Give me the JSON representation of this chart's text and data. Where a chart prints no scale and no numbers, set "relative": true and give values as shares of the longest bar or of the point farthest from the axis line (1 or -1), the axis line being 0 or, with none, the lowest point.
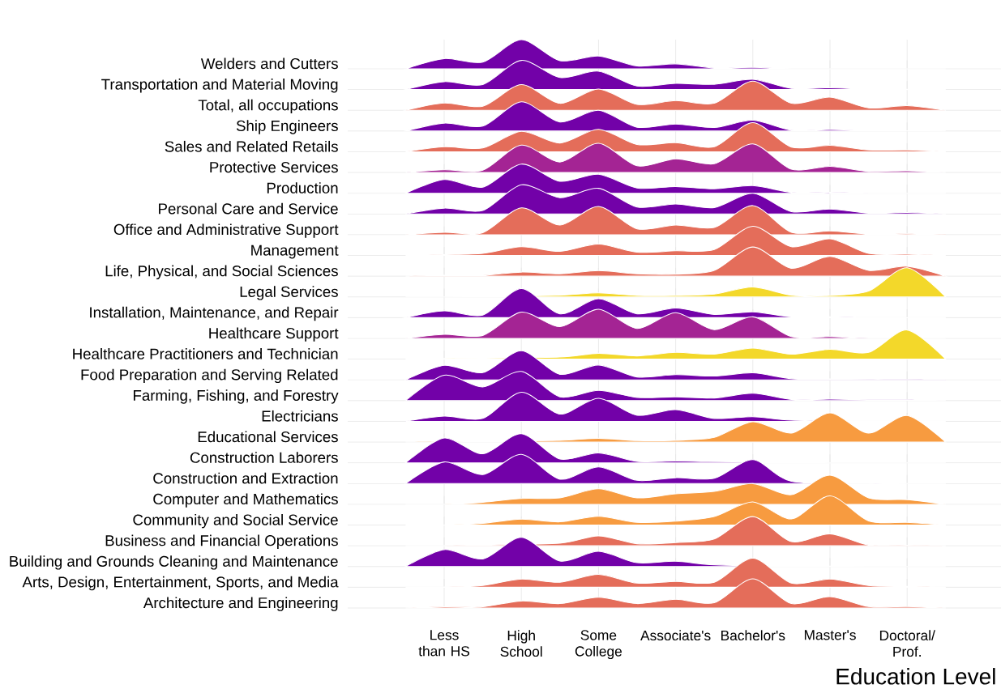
{
  "chart_data": [
    {
      "type": "area",
      "relative": true,
      "grid": true,
      "ylabel": "Welders and Cutters",
      "categories": [
        null,
        null,
        null,
        null,
        null,
        null,
        null,
        null,
        null,
        null,
        null,
        null,
        null,
        null,
        null
      ],
      "color": "#7201a8",
      "values": [
        0,
        0.35,
        0.23,
        1,
        0.28,
        0.44,
        0.1,
        0.17,
        0.03,
        0.05,
        0,
        0,
        0,
        0,
        0
      ]
    },
    {
      "type": "area",
      "relative": true,
      "grid": true,
      "ylabel": "Transportation and Material Moving",
      "categories": [
        null,
        null,
        null,
        null,
        null,
        null,
        null,
        null,
        null,
        null,
        null,
        null,
        null,
        null,
        null
      ],
      "color": "#7201a8",
      "values": [
        0,
        0.27,
        0.17,
        1,
        0.41,
        0.63,
        0.12,
        0.21,
        0.18,
        0.35,
        0.04,
        0.06,
        0.01,
        0.01,
        0
      ]
    },
    {
      "type": "area",
      "relative": true,
      "grid": true,
      "ylabel": "Total, all occupations",
      "categories": [
        null,
        null,
        null,
        null,
        null,
        null,
        null,
        null,
        null,
        null,
        null,
        null,
        null,
        null,
        null
      ],
      "color": "#e46d5a",
      "values": [
        0,
        0.25,
        0.14,
        0.88,
        0.24,
        0.73,
        0.2,
        0.33,
        0.24,
        1,
        0.24,
        0.45,
        0.08,
        0.16,
        0
      ]
    },
    {
      "type": "area",
      "relative": true,
      "grid": true,
      "ylabel": "Ship Engineers",
      "categories": [
        null,
        null,
        null,
        null,
        null,
        null,
        null,
        null,
        null,
        null,
        null,
        null,
        null,
        null,
        null
      ],
      "color": "#7201a8",
      "values": [
        0,
        0.27,
        0.17,
        1,
        0.31,
        0.71,
        0.13,
        0.24,
        0.12,
        0.37,
        0.03,
        0.05,
        0.01,
        0.01,
        0
      ]
    },
    {
      "type": "area",
      "relative": true,
      "grid": true,
      "ylabel": "Sales and Related Retails",
      "categories": [
        null,
        null,
        null,
        null,
        null,
        null,
        null,
        null,
        null,
        null,
        null,
        null,
        null,
        null,
        null
      ],
      "color": "#e46d5a",
      "values": [
        0,
        0.17,
        0.13,
        0.7,
        0.3,
        0.77,
        0.25,
        0.31,
        0.17,
        1,
        0.16,
        0.22,
        0.06,
        0.06,
        0
      ]
    },
    {
      "type": "area",
      "relative": true,
      "grid": true,
      "ylabel": "Protective Services",
      "categories": [
        null,
        null,
        null,
        null,
        null,
        null,
        null,
        null,
        null,
        null,
        null,
        null,
        null,
        null,
        null
      ],
      "color": "#a42494",
      "values": [
        0,
        0.09,
        0.08,
        0.94,
        0.36,
        1,
        0.23,
        0.47,
        0.3,
        0.98,
        0.11,
        0.21,
        0.04,
        0.06,
        0
      ]
    },
    {
      "type": "area",
      "relative": true,
      "grid": true,
      "ylabel": "Production",
      "categories": [
        null,
        null,
        null,
        null,
        null,
        null,
        null,
        null,
        null,
        null,
        null,
        null,
        null,
        null,
        null
      ],
      "color": "#7201a8",
      "values": [
        0,
        0.47,
        0.21,
        1,
        0.41,
        0.65,
        0.18,
        0.23,
        0.15,
        0.26,
        0.03,
        0.03,
        0,
        0,
        0
      ]
    },
    {
      "type": "area",
      "relative": true,
      "grid": true,
      "ylabel": "Personal Care and Service",
      "categories": [
        null,
        null,
        null,
        null,
        null,
        null,
        null,
        null,
        null,
        null,
        null,
        null,
        null,
        null,
        null
      ],
      "color": "#7201a8",
      "values": [
        0,
        0.2,
        0.12,
        1,
        0.56,
        0.88,
        0.24,
        0.34,
        0.22,
        0.71,
        0.08,
        0.17,
        0.03,
        0.05,
        0
      ]
    },
    {
      "type": "area",
      "relative": true,
      "grid": true,
      "ylabel": "Office and Administrative Support",
      "categories": [
        null,
        null,
        null,
        null,
        null,
        null,
        null,
        null,
        null,
        null,
        null,
        null,
        null,
        null,
        null
      ],
      "color": "#e46d5a",
      "values": [
        0,
        0.08,
        0.07,
        0.92,
        0.33,
        0.97,
        0.2,
        0.33,
        0.25,
        1,
        0.08,
        0.13,
        0.02,
        0.03,
        0
      ]
    },
    {
      "type": "area",
      "relative": true,
      "grid": true,
      "ylabel": "Management",
      "categories": [
        null,
        null,
        null,
        null,
        null,
        null,
        null,
        null,
        null,
        null,
        null,
        null,
        null,
        null,
        null
      ],
      "color": "#e46d5a",
      "values": [
        0,
        0.03,
        0.07,
        0.3,
        0.14,
        0.39,
        0.11,
        0.16,
        0.2,
        1,
        0.3,
        0.57,
        0.07,
        0.04,
        0
      ]
    },
    {
      "type": "area",
      "relative": true,
      "grid": true,
      "ylabel": "Life, Physical, and Social Sciences",
      "categories": [
        null,
        null,
        null,
        null,
        null,
        null,
        null,
        null,
        null,
        null,
        null,
        null,
        null,
        null,
        null
      ],
      "color": "#e46d5a",
      "values": [
        0,
        0.03,
        0.03,
        0.14,
        0.08,
        0.19,
        0.08,
        0.07,
        0.2,
        1,
        0.27,
        0.68,
        0.2,
        0.34,
        0
      ]
    },
    {
      "type": "area",
      "relative": true,
      "grid": true,
      "ylabel": "Legal Services",
      "categories": [
        null,
        null,
        null,
        null,
        null,
        null,
        null,
        null,
        null,
        null,
        null,
        null,
        null,
        null,
        null
      ],
      "color": "#f3d82a",
      "values": [
        0,
        0,
        0.01,
        null,
        0.06,
        0.14,
        0.05,
        0.05,
        0.1,
        0.34,
        0.06,
        0.05,
        0.2,
        1,
        0
      ]
    },
    {
      "type": "area",
      "relative": true,
      "grid": true,
      "ylabel": "Installation, Maintenance, and Repair",
      "categories": [
        null,
        null,
        null,
        null,
        null,
        null,
        null,
        null,
        null,
        null,
        null,
        null,
        null,
        null,
        null
      ],
      "color": "#7201a8",
      "values": [
        0,
        0.23,
        0.09,
        1,
        0.13,
        0.65,
        0.13,
        0.33,
        0.11,
        0.2,
        0.03,
        0.03,
        0,
        0,
        0
      ]
    },
    {
      "type": "area",
      "relative": true,
      "grid": true,
      "ylabel": "Healthcare Support",
      "categories": [
        null,
        null,
        null,
        null,
        null,
        null,
        null,
        null,
        null,
        null,
        null,
        null,
        null,
        null,
        null
      ],
      "color": "#a42494",
      "values": [
        0,
        0.14,
        0.1,
        0.9,
        0.4,
        1,
        0.34,
        0.88,
        0.3,
        0.74,
        0.06,
        0.06,
        0,
        null,
        0
      ]
    },
    {
      "type": "area",
      "relative": true,
      "grid": true,
      "ylabel": "Healthcare Practitioners and Technician",
      "categories": [
        null,
        null,
        null,
        null,
        null,
        null,
        null,
        null,
        null,
        null,
        null,
        null,
        null,
        null,
        null
      ],
      "color": "#f3d82a",
      "values": [
        0,
        0.02,
        0.03,
        null,
        0.07,
        0.2,
        0.11,
        0.23,
        0.17,
        0.38,
        0.17,
        0.34,
        0.23,
        1,
        0
      ]
    },
    {
      "type": "area",
      "relative": true,
      "grid": true,
      "ylabel": "Food Preparation and Serving Related",
      "categories": [
        null,
        null,
        null,
        null,
        null,
        null,
        null,
        null,
        null,
        null,
        null,
        null,
        null,
        null,
        null
      ],
      "color": "#7201a8",
      "values": [
        0,
        0.5,
        0.25,
        1,
        0.19,
        0.51,
        0.1,
        0.18,
        0.13,
        0.24,
        0.04,
        0.03,
        0.01,
        0.01,
        0
      ]
    },
    {
      "type": "area",
      "relative": true,
      "grid": true,
      "ylabel": "Farming, Fishing, and Forestry",
      "categories": [
        null,
        null,
        null,
        null,
        null,
        null,
        null,
        null,
        null,
        null,
        null,
        null,
        null,
        null,
        null
      ],
      "color": "#7201a8",
      "values": [
        0,
        0.87,
        0.47,
        1,
        0.13,
        0.35,
        0.11,
        0.13,
        0.09,
        0.25,
        0.04,
        0.05,
        0.03,
        0.03,
        0
      ]
    },
    {
      "type": "area",
      "relative": true,
      "grid": true,
      "ylabel": "Electricians",
      "categories": [
        null,
        null,
        null,
        null,
        null,
        null,
        null,
        null,
        null,
        null,
        null,
        null,
        null,
        null,
        null
      ],
      "color": "#7201a8",
      "values": [
        0,
        0.18,
        0.1,
        1,
        0.25,
        0.79,
        0.21,
        0.4,
        0.1,
        0.16,
        0.04,
        null,
        0,
        null,
        0
      ]
    },
    {
      "type": "area",
      "relative": true,
      "grid": true,
      "ylabel": "Educational Services",
      "categories": [
        null,
        null,
        null,
        null,
        null,
        null,
        null,
        null,
        null,
        null,
        null,
        null,
        null,
        null,
        null
      ],
      "color": "#f79b40",
      "values": [
        0,
        null,
        0.02,
        null,
        0.06,
        0.13,
        0.05,
        0.06,
        0.16,
        0.7,
        0.31,
        1,
        0.31,
        0.91,
        0
      ]
    },
    {
      "type": "area",
      "relative": true,
      "grid": true,
      "ylabel": "Construction Laborers",
      "categories": [
        null,
        null,
        null,
        null,
        null,
        null,
        null,
        null,
        null,
        null,
        null,
        null,
        null,
        null,
        null
      ],
      "color": "#7201a8",
      "values": [
        0,
        0.85,
        0.31,
        1,
        0.13,
        0.34,
        0.05,
        0.06,
        0.04,
        null,
        0.01,
        0,
        0,
        0,
        0
      ]
    },
    {
      "type": "area",
      "relative": true,
      "grid": true,
      "ylabel": "Construction and Extraction",
      "categories": [
        null,
        null,
        null,
        null,
        null,
        null,
        null,
        null,
        null,
        null,
        null,
        null,
        null,
        null,
        null
      ],
      "color": "#7201a8",
      "values": [
        0,
        0.74,
        0.31,
        1,
        0.15,
        0.57,
        0.11,
        0.2,
        0.18,
        0.82,
        0.08,
        null,
        0,
        0,
        0
      ]
    },
    {
      "type": "area",
      "relative": true,
      "grid": true,
      "ylabel": "Computer and Mathematics",
      "categories": [
        null,
        null,
        null,
        null,
        null,
        null,
        null,
        null,
        null,
        null,
        null,
        null,
        null,
        null,
        null
      ],
      "color": "#f79b40",
      "values": [
        0,
        0,
        0.07,
        0.2,
        0.22,
        0.53,
        0.22,
        0.36,
        0.44,
        0.71,
        0.33,
        1,
        0.22,
        0.16,
        0
      ]
    },
    {
      "type": "area",
      "relative": true,
      "grid": true,
      "ylabel": "Community and Social Service",
      "categories": [
        null,
        null,
        null,
        null,
        null,
        null,
        null,
        null,
        null,
        null,
        null,
        null,
        null,
        null,
        null
      ],
      "color": "#f79b40",
      "values": [
        0,
        0,
        0.06,
        0.2,
        0.11,
        0.3,
        0.09,
        0.13,
        0.29,
        0.79,
        0.21,
        1,
        0.14,
        0.09,
        0
      ]
    },
    {
      "type": "area",
      "relative": true,
      "grid": true,
      "ylabel": "Business and Financial Operations",
      "categories": [
        null,
        null,
        null,
        null,
        null,
        null,
        null,
        null,
        null,
        null,
        null,
        null,
        null,
        null,
        null
      ],
      "color": "#e46d5a",
      "values": [
        0,
        0,
        0.03,
        null,
        0.09,
        0.34,
        0.07,
        0.11,
        0.23,
        1,
        0.14,
        0.41,
        0.03,
        0.02,
        0
      ]
    },
    {
      "type": "area",
      "relative": true,
      "grid": true,
      "ylabel": "Building and Grounds Cleaning and Maintenance",
      "categories": [
        null,
        null,
        null,
        null,
        null,
        null,
        null,
        null,
        null,
        null,
        null,
        null,
        null,
        null,
        null
      ],
      "color": "#7201a8",
      "values": [
        0,
        0.58,
        0.26,
        1,
        0.19,
        0.52,
        0.13,
        0.18,
        0.06,
        null,
        0.01,
        0.01,
        0,
        0,
        0
      ]
    },
    {
      "type": "area",
      "relative": true,
      "grid": true,
      "ylabel": "Arts, Design, Entertainment, Sports, and Media",
      "categories": [
        null,
        null,
        null,
        null,
        null,
        null,
        null,
        null,
        null,
        null,
        null,
        null,
        null,
        null,
        null
      ],
      "color": "#e46d5a",
      "values": [
        0,
        0.01,
        0.06,
        0.28,
        0.17,
        0.44,
        0.14,
        0.2,
        0.17,
        1,
        0.14,
        0.28,
        0.06,
        0.03,
        0
      ]
    },
    {
      "type": "area",
      "relative": true,
      "grid": true,
      "ylabel": "Architecture and Engineering",
      "xlabel": "Education Level",
      "categories": [
        null,
        "Less than HS",
        null,
        "High School",
        null,
        "Some College",
        null,
        "Associate's",
        null,
        "Bachelor's",
        null,
        "Master's",
        null,
        "Doctoral/ Prof.",
        null
      ],
      "color": "#e46d5a",
      "values": [
        0,
        0.04,
        0.04,
        0.24,
        0.15,
        0.37,
        0.15,
        0.3,
        0.18,
        1,
        0.15,
        0.39,
        0.05,
        0.05,
        0
      ]
    }
  ]
}
